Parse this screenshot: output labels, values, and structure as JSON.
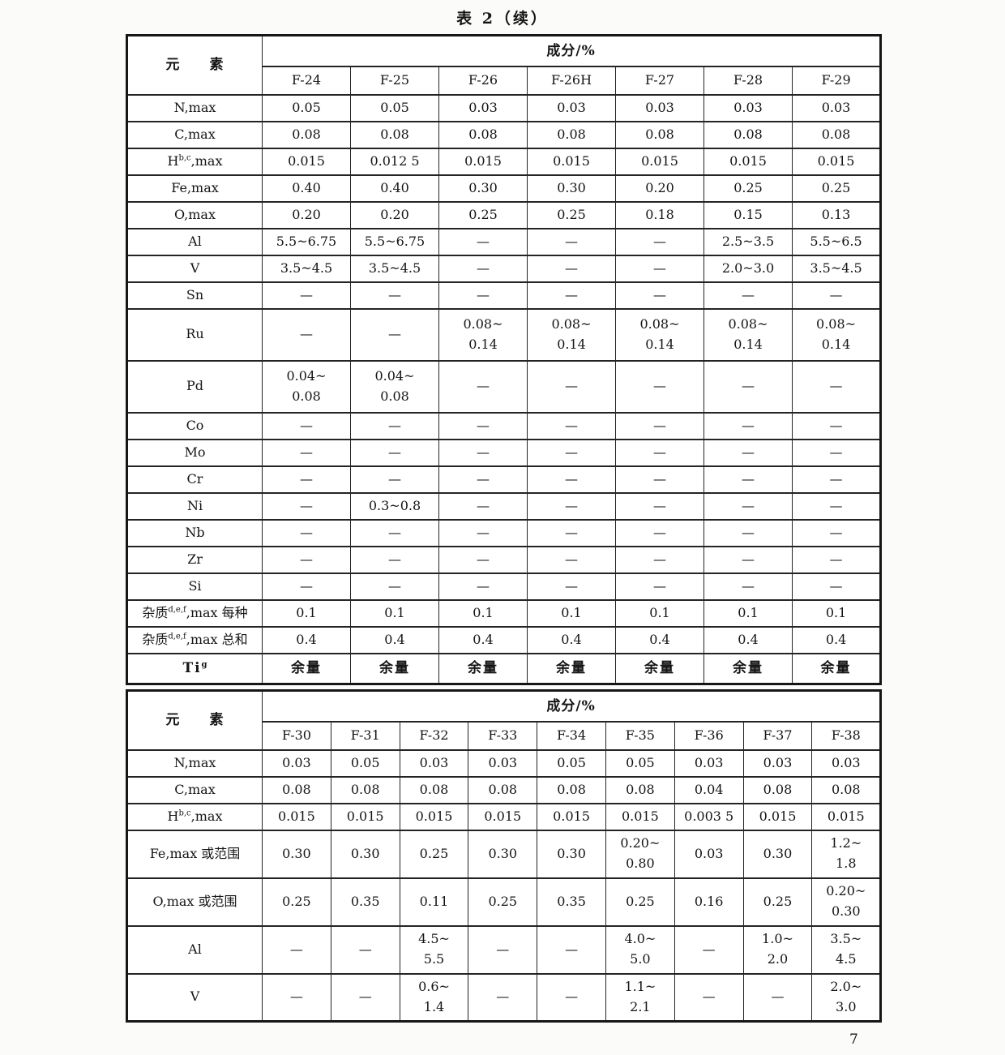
{
  "page": {
    "title": "表 2（续）",
    "page_number": "7"
  },
  "tables": [
    {
      "element_col_header": "元　　素",
      "composition_header": "成分/%",
      "grade_columns": [
        "F-24",
        "F-25",
        "F-26",
        "F-26H",
        "F-27",
        "F-28",
        "F-29"
      ],
      "rows": [
        {
          "label_pre": "N",
          "label_sup": "",
          "label_post": ",max",
          "tall": false,
          "values": [
            "0.05",
            "0.05",
            "0.03",
            "0.03",
            "0.03",
            "0.03",
            "0.03"
          ]
        },
        {
          "label_pre": "C",
          "label_sup": "",
          "label_post": ",max",
          "tall": false,
          "values": [
            "0.08",
            "0.08",
            "0.08",
            "0.08",
            "0.08",
            "0.08",
            "0.08"
          ]
        },
        {
          "label_pre": "H",
          "label_sup": "b,c",
          "label_post": ",max",
          "tall": false,
          "values": [
            "0.015",
            "0.012 5",
            "0.015",
            "0.015",
            "0.015",
            "0.015",
            "0.015"
          ]
        },
        {
          "label_pre": "Fe",
          "label_sup": "",
          "label_post": ",max",
          "tall": false,
          "values": [
            "0.40",
            "0.40",
            "0.30",
            "0.30",
            "0.20",
            "0.25",
            "0.25"
          ]
        },
        {
          "label_pre": "O",
          "label_sup": "",
          "label_post": ",max",
          "tall": false,
          "values": [
            "0.20",
            "0.20",
            "0.25",
            "0.25",
            "0.18",
            "0.15",
            "0.13"
          ]
        },
        {
          "label_pre": "Al",
          "label_sup": "",
          "label_post": "",
          "tall": false,
          "values": [
            "5.5~6.75",
            "5.5~6.75",
            "—",
            "—",
            "—",
            "2.5~3.5",
            "5.5~6.5"
          ]
        },
        {
          "label_pre": "V",
          "label_sup": "",
          "label_post": "",
          "tall": false,
          "values": [
            "3.5~4.5",
            "3.5~4.5",
            "—",
            "—",
            "—",
            "2.0~3.0",
            "3.5~4.5"
          ]
        },
        {
          "label_pre": "Sn",
          "label_sup": "",
          "label_post": "",
          "tall": false,
          "values": [
            "—",
            "—",
            "—",
            "—",
            "—",
            "—",
            "—"
          ]
        },
        {
          "label_pre": "Ru",
          "label_sup": "",
          "label_post": "",
          "tall": true,
          "values": [
            "—",
            "—",
            "0.08~\n0.14",
            "0.08~\n0.14",
            "0.08~\n0.14",
            "0.08~\n0.14",
            "0.08~\n0.14"
          ]
        },
        {
          "label_pre": "Pd",
          "label_sup": "",
          "label_post": "",
          "tall": true,
          "values": [
            "0.04~\n0.08",
            "0.04~\n0.08",
            "—",
            "—",
            "—",
            "—",
            "—"
          ]
        },
        {
          "label_pre": "Co",
          "label_sup": "",
          "label_post": "",
          "tall": false,
          "values": [
            "—",
            "—",
            "—",
            "—",
            "—",
            "—",
            "—"
          ]
        },
        {
          "label_pre": "Mo",
          "label_sup": "",
          "label_post": "",
          "tall": false,
          "values": [
            "—",
            "—",
            "—",
            "—",
            "—",
            "—",
            "—"
          ]
        },
        {
          "label_pre": "Cr",
          "label_sup": "",
          "label_post": "",
          "tall": false,
          "values": [
            "—",
            "—",
            "—",
            "—",
            "—",
            "—",
            "—"
          ]
        },
        {
          "label_pre": "Ni",
          "label_sup": "",
          "label_post": "",
          "tall": false,
          "values": [
            "—",
            "0.3~0.8",
            "—",
            "—",
            "—",
            "—",
            "—"
          ]
        },
        {
          "label_pre": "Nb",
          "label_sup": "",
          "label_post": "",
          "tall": false,
          "values": [
            "—",
            "—",
            "—",
            "—",
            "—",
            "—",
            "—"
          ]
        },
        {
          "label_pre": "Zr",
          "label_sup": "",
          "label_post": "",
          "tall": false,
          "values": [
            "—",
            "—",
            "—",
            "—",
            "—",
            "—",
            "—"
          ]
        },
        {
          "label_pre": "Si",
          "label_sup": "",
          "label_post": "",
          "tall": false,
          "values": [
            "—",
            "—",
            "—",
            "—",
            "—",
            "—",
            "—"
          ]
        },
        {
          "label_pre": "杂质",
          "label_sup": "d,e,f",
          "label_post": ",max 每种",
          "tall": false,
          "values": [
            "0.1",
            "0.1",
            "0.1",
            "0.1",
            "0.1",
            "0.1",
            "0.1"
          ]
        },
        {
          "label_pre": "杂质",
          "label_sup": "d,e,f",
          "label_post": ",max 总和",
          "tall": false,
          "values": [
            "0.4",
            "0.4",
            "0.4",
            "0.4",
            "0.4",
            "0.4",
            "0.4"
          ]
        },
        {
          "label_pre": "Ti",
          "label_sup": "g",
          "label_post": "",
          "tall": false,
          "bold": true,
          "values": [
            "余量",
            "余量",
            "余量",
            "余量",
            "余量",
            "余量",
            "余量"
          ]
        }
      ]
    },
    {
      "element_col_header": "元　　素",
      "composition_header": "成分/%",
      "grade_columns": [
        "F-30",
        "F-31",
        "F-32",
        "F-33",
        "F-34",
        "F-35",
        "F-36",
        "F-37",
        "F-38"
      ],
      "rows": [
        {
          "label_pre": "N",
          "label_sup": "",
          "label_post": ",max",
          "tall": false,
          "values": [
            "0.03",
            "0.05",
            "0.03",
            "0.03",
            "0.05",
            "0.05",
            "0.03",
            "0.03",
            "0.03"
          ]
        },
        {
          "label_pre": "C",
          "label_sup": "",
          "label_post": ",max",
          "tall": false,
          "values": [
            "0.08",
            "0.08",
            "0.08",
            "0.08",
            "0.08",
            "0.08",
            "0.04",
            "0.08",
            "0.08"
          ]
        },
        {
          "label_pre": "H",
          "label_sup": "b,c",
          "label_post": ",max",
          "tall": false,
          "values": [
            "0.015",
            "0.015",
            "0.015",
            "0.015",
            "0.015",
            "0.015",
            "0.003 5",
            "0.015",
            "0.015"
          ]
        },
        {
          "label_pre": "Fe",
          "label_sup": "",
          "label_post": ",max 或范围",
          "tall": true,
          "values": [
            "0.30",
            "0.30",
            "0.25",
            "0.30",
            "0.30",
            "0.20~\n0.80",
            "0.03",
            "0.30",
            "1.2~\n1.8"
          ]
        },
        {
          "label_pre": "O",
          "label_sup": "",
          "label_post": ",max 或范围",
          "tall": true,
          "values": [
            "0.25",
            "0.35",
            "0.11",
            "0.25",
            "0.35",
            "0.25",
            "0.16",
            "0.25",
            "0.20~\n0.30"
          ]
        },
        {
          "label_pre": "Al",
          "label_sup": "",
          "label_post": "",
          "tall": true,
          "values": [
            "—",
            "—",
            "4.5~\n5.5",
            "—",
            "—",
            "4.0~\n5.0",
            "—",
            "1.0~\n2.0",
            "3.5~\n4.5"
          ]
        },
        {
          "label_pre": "V",
          "label_sup": "",
          "label_post": "",
          "tall": true,
          "values": [
            "—",
            "—",
            "0.6~\n1.4",
            "—",
            "—",
            "1.1~\n2.1",
            "—",
            "—",
            "2.0~\n3.0"
          ]
        }
      ]
    }
  ]
}
